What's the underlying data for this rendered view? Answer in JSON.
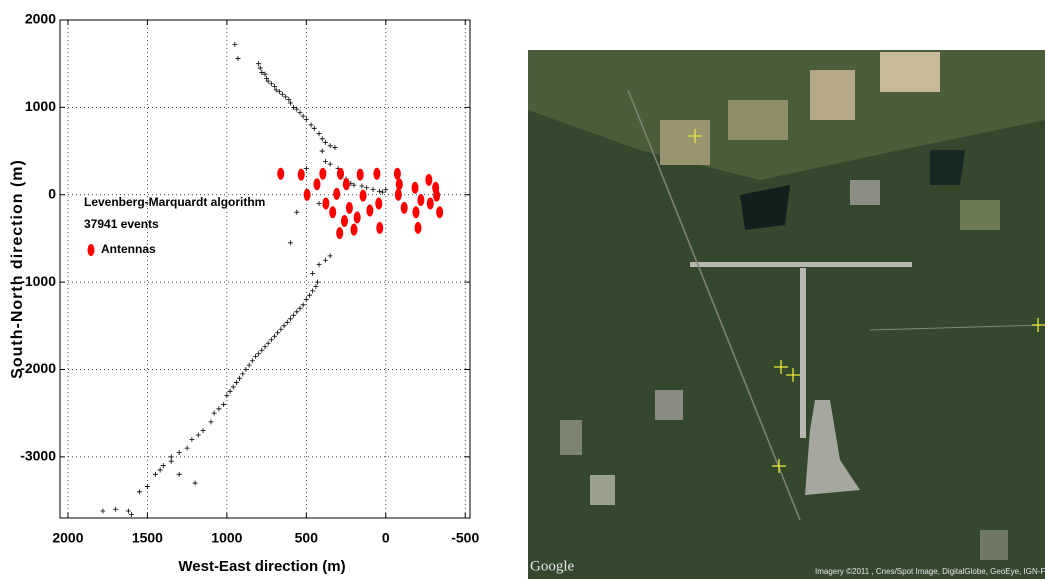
{
  "chart_data": {
    "type": "scatter",
    "xlabel": "West-East direction (m)",
    "ylabel": "South-North direction (m)",
    "xlim": [
      2050,
      -530
    ],
    "ylim": [
      -3700,
      2000
    ],
    "xticks": [
      2000,
      1500,
      1000,
      500,
      0,
      -500
    ],
    "yticks": [
      2000,
      1000,
      0,
      -1000,
      -2000,
      -3000
    ],
    "grid": true,
    "annotations": [
      "Levenberg-Marquardt algorithm",
      "37941 events"
    ],
    "series": [
      {
        "color": "#000000",
        "marker": "+",
        "x": [
          950,
          930,
          800,
          790,
          780,
          760,
          750,
          740,
          720,
          700,
          690,
          670,
          650,
          630,
          610,
          600,
          580,
          560,
          540,
          520,
          500,
          470,
          450,
          420,
          400,
          380,
          350,
          320,
          400,
          380,
          350,
          300,
          280,
          250,
          220,
          200,
          150,
          120,
          80,
          40,
          20,
          0,
          500,
          560,
          600,
          420,
          1780,
          1620,
          1600,
          1550,
          1500,
          1450,
          1420,
          1400,
          1350,
          1300,
          1250,
          1220,
          1200,
          1180,
          1150,
          1100,
          1080,
          1050,
          1020,
          1000,
          980,
          960,
          940,
          920,
          900,
          880,
          860,
          840,
          820,
          800,
          780,
          760,
          740,
          720,
          700,
          680,
          660,
          640,
          620,
          600,
          580,
          560,
          540,
          520,
          500,
          480,
          460,
          440,
          430,
          460,
          420,
          380,
          350,
          1350,
          1300,
          1700
        ],
        "y": [
          1720,
          1560,
          1500,
          1450,
          1400,
          1380,
          1330,
          1300,
          1270,
          1240,
          1200,
          1180,
          1150,
          1120,
          1090,
          1050,
          1000,
          980,
          940,
          900,
          860,
          800,
          760,
          700,
          640,
          600,
          560,
          540,
          500,
          380,
          350,
          300,
          250,
          180,
          130,
          110,
          100,
          80,
          60,
          40,
          30,
          60,
          300,
          -200,
          -550,
          -100,
          -3620,
          -3620,
          -3660,
          -3400,
          -3340,
          -3200,
          -3150,
          -3100,
          -3000,
          -2950,
          -2900,
          -2800,
          -3300,
          -2750,
          -2700,
          -2600,
          -2500,
          -2450,
          -2400,
          -2300,
          -2250,
          -2200,
          -2150,
          -2100,
          -2050,
          -2000,
          -1950,
          -1900,
          -1850,
          -1820,
          -1780,
          -1740,
          -1700,
          -1660,
          -1620,
          -1580,
          -1540,
          -1500,
          -1460,
          -1420,
          -1380,
          -1340,
          -1300,
          -1260,
          -1200,
          -1150,
          -1100,
          -1050,
          -1000,
          -900,
          -800,
          -750,
          -700,
          -3050,
          -3200,
          -3600
        ]
      },
      {
        "name": "Antennas",
        "color": "#ff0000",
        "marker": "o",
        "x": [
          661,
          532,
          495,
          433,
          396,
          377,
          334,
          309,
          285,
          248,
          229,
          180,
          161,
          143,
          100,
          56,
          44,
          38,
          260,
          290,
          200,
          -73,
          -85,
          -116,
          -79,
          -184,
          -190,
          -203,
          -221,
          -271,
          -280,
          -314,
          -339,
          -320
        ],
        "y": [
          240,
          230,
          0,
          120,
          240,
          -100,
          -200,
          10,
          240,
          120,
          -150,
          -260,
          230,
          -10,
          -180,
          240,
          -100,
          -380,
          -300,
          -440,
          -400,
          240,
          120,
          -150,
          0,
          80,
          -200,
          -380,
          -60,
          170,
          -100,
          80,
          -200,
          -10
        ]
      }
    ]
  },
  "map": {
    "logo": "Google",
    "credits": "Imagery ©2011 , Cnes/Spot Image, DigitalGlobe, GeoEye, IGN-France"
  }
}
